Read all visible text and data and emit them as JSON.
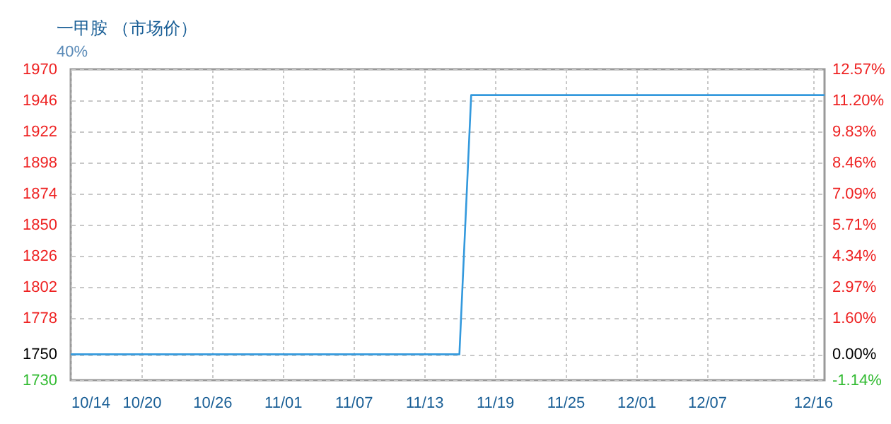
{
  "chart_data": {
    "type": "line",
    "title": "一甲胺 （市场价）",
    "annotations": [
      "40%"
    ],
    "x": [
      "--10-14",
      "--11-16",
      "--11-17",
      "--12-17"
    ],
    "series": [
      {
        "color": "#3399dd",
        "values": [
          1750,
          1750,
          1950,
          1950
        ]
      }
    ],
    "xlim": [
      "--10-14",
      "--12-17"
    ],
    "xticks": [
      {
        "value": "--10-14",
        "label": "10/14"
      },
      {
        "value": "--10-20",
        "label": "10/20"
      },
      {
        "value": "--10-26",
        "label": "10/26"
      },
      {
        "value": "--11-01",
        "label": "11/01"
      },
      {
        "value": "--11-07",
        "label": "11/07"
      },
      {
        "value": "--11-13",
        "label": "11/13"
      },
      {
        "value": "--11-19",
        "label": "11/19"
      },
      {
        "value": "--11-25",
        "label": "11/25"
      },
      {
        "value": "--12-01",
        "label": "12/01"
      },
      {
        "value": "--12-07",
        "label": "12/07"
      },
      {
        "value": "--12-16",
        "label": "12/16"
      }
    ],
    "ylim": [
      1730,
      1970
    ],
    "yticks": [
      1730,
      1750,
      1778,
      1802,
      1826,
      1850,
      1874,
      1898,
      1922,
      1946,
      1970
    ],
    "y2lim": [
      -1.14,
      12.57
    ],
    "y2ticks": [
      {
        "value": -1.14,
        "label": "-1.14%"
      },
      {
        "value": 0,
        "label": "0.00%"
      },
      {
        "value": 1.6,
        "label": "1.60%"
      },
      {
        "value": 2.97,
        "label": "2.97%"
      },
      {
        "value": 4.34,
        "label": "4.34%"
      },
      {
        "value": 5.71,
        "label": "5.71%"
      },
      {
        "value": 7.09,
        "label": "7.09%"
      },
      {
        "value": 8.46,
        "label": "8.46%"
      },
      {
        "value": 9.83,
        "label": "9.83%"
      },
      {
        "value": 11.2,
        "label": "11.20%"
      },
      {
        "value": 12.57,
        "label": "12.57%"
      }
    ],
    "grid": true,
    "marker": "none",
    "line_style": "solid"
  }
}
